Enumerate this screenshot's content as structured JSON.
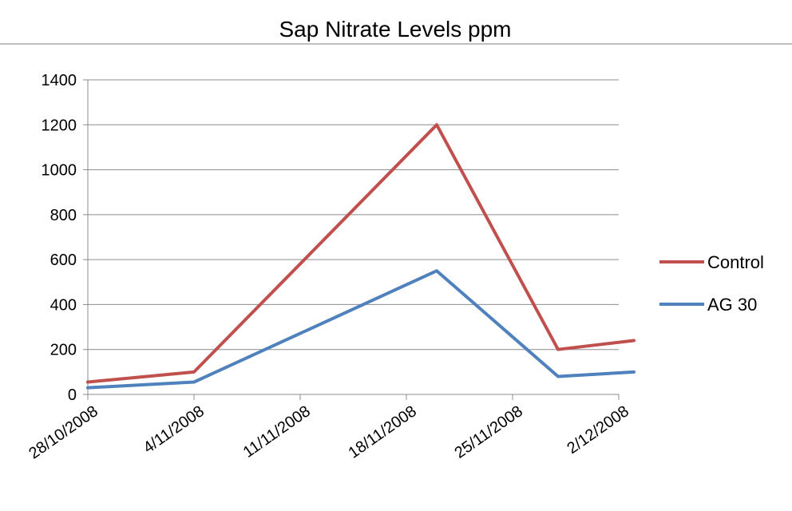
{
  "chart_data": {
    "type": "line",
    "title": "Sap Nitrate Levels ppm",
    "xlabel": "",
    "ylabel": "",
    "x_ticks": [
      "28/10/2008",
      "4/11/2008",
      "11/11/2008",
      "18/11/2008",
      "25/11/2008",
      "2/12/2008"
    ],
    "x_range": [
      "28/10/2008",
      "2/12/2008"
    ],
    "ylim": [
      0,
      1400
    ],
    "y_ticks": [
      0,
      200,
      400,
      600,
      800,
      1000,
      1200,
      1400
    ],
    "grid": true,
    "legend_position": "right",
    "series": [
      {
        "name": "Control",
        "color": "#c0504d",
        "points": [
          {
            "x": "28/10/2008",
            "y": 55
          },
          {
            "x": "4/11/2008",
            "y": 100
          },
          {
            "x": "20/11/2008",
            "y": 1200
          },
          {
            "x": "28/11/2008",
            "y": 200
          },
          {
            "x": "3/12/2008",
            "y": 240
          }
        ]
      },
      {
        "name": "AG 30",
        "color": "#4f81bd",
        "points": [
          {
            "x": "28/10/2008",
            "y": 30
          },
          {
            "x": "4/11/2008",
            "y": 55
          },
          {
            "x": "20/11/2008",
            "y": 550
          },
          {
            "x": "28/11/2008",
            "y": 80
          },
          {
            "x": "3/12/2008",
            "y": 100
          }
        ]
      }
    ]
  }
}
